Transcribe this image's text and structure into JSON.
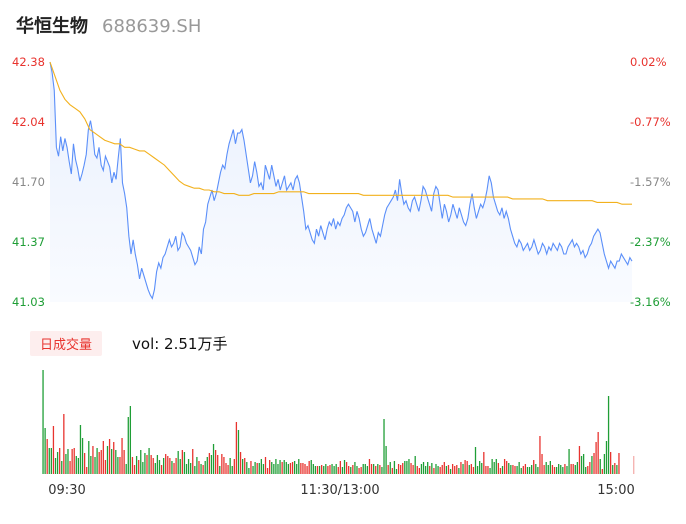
{
  "header": {
    "name": "华恒生物",
    "code": "688639.SH"
  },
  "volume_panel": {
    "tab_label": "日成交量",
    "vol_label": "vol: 2.51万手"
  },
  "colors": {
    "price": "#5b8ff9",
    "avg": "#f2b11d",
    "up": "#e8332e",
    "down": "#1f9e36",
    "area_top": "#e9f0fd",
    "area_bottom": "#f9fbff"
  },
  "chart_data": [
    {
      "type": "line",
      "title": "",
      "series": [
        {
          "name": "",
          "values": [
            42.38,
            42.32,
            42.22,
            41.9,
            41.85,
            41.96,
            41.88,
            41.95,
            41.9,
            41.82,
            41.75,
            41.92,
            41.83,
            41.78,
            41.71,
            41.75,
            41.8,
            41.86,
            42.0,
            42.05,
            41.98,
            41.86,
            41.84,
            41.9,
            41.8,
            41.77,
            41.85,
            41.82,
            41.79,
            41.7,
            41.76,
            41.72,
            41.84,
            41.95,
            41.7,
            41.64,
            41.56,
            41.4,
            41.3,
            41.38,
            41.3,
            41.24,
            41.16,
            41.22,
            41.18,
            41.14,
            41.1,
            41.07,
            41.05,
            41.1,
            41.2,
            41.25,
            41.22,
            41.28,
            41.3,
            41.34,
            41.38,
            41.34,
            41.36,
            41.4,
            41.32,
            41.34,
            41.42,
            41.4,
            41.36,
            41.34,
            41.32,
            41.28,
            41.24,
            41.26,
            41.34,
            41.3,
            41.44,
            41.48,
            41.58,
            41.62,
            41.66,
            41.6,
            41.64,
            41.7,
            41.76,
            41.8,
            41.78,
            41.86,
            41.92,
            41.96,
            42.0,
            41.92,
            41.98,
            41.98,
            42.0,
            41.94,
            41.86,
            41.78,
            41.7,
            41.74,
            41.82,
            41.76,
            41.68,
            41.7,
            41.66,
            41.8,
            41.76,
            41.72,
            41.8,
            41.74,
            41.68,
            41.72,
            41.66,
            41.7,
            41.74,
            41.66,
            41.68,
            41.7,
            41.66,
            41.72,
            41.74,
            41.7,
            41.62,
            41.54,
            41.44,
            41.46,
            41.42,
            41.38,
            41.36,
            41.44,
            41.4,
            41.46,
            41.42,
            41.38,
            41.44,
            41.48,
            41.46,
            41.5,
            41.44,
            41.48,
            41.46,
            41.5,
            41.52,
            41.56,
            41.58,
            41.56,
            41.54,
            41.48,
            41.54,
            41.5,
            41.44,
            41.4,
            41.42,
            41.46,
            41.5,
            41.44,
            41.4,
            41.36,
            41.42,
            41.4,
            41.46,
            41.52,
            41.56,
            41.58,
            41.6,
            41.62,
            41.66,
            41.6,
            41.72,
            41.64,
            41.58,
            41.6,
            41.56,
            41.54,
            41.6,
            41.62,
            41.58,
            41.54,
            41.6,
            41.68,
            41.66,
            41.62,
            41.58,
            41.54,
            41.64,
            41.68,
            41.66,
            41.58,
            41.5,
            41.58,
            41.54,
            41.48,
            41.52,
            41.58,
            41.54,
            41.5,
            41.56,
            41.52,
            41.48,
            41.46,
            41.5,
            41.58,
            41.64,
            41.56,
            41.5,
            41.54,
            41.58,
            41.56,
            41.6,
            41.66,
            41.74,
            41.7,
            41.62,
            41.58,
            41.54,
            41.52,
            41.56,
            41.5,
            41.54,
            41.5,
            41.44,
            41.4,
            41.36,
            41.34,
            41.38,
            41.36,
            41.32,
            41.34,
            41.36,
            41.32,
            41.34,
            41.38,
            41.34,
            41.3,
            41.32,
            41.36,
            41.34,
            41.3,
            41.34,
            41.32,
            41.36,
            41.34,
            41.32,
            41.36,
            41.34,
            41.3,
            41.3,
            41.34,
            41.36,
            41.38,
            41.34,
            41.36,
            41.34,
            41.3,
            41.32,
            41.28,
            41.3,
            41.34,
            41.36,
            41.4,
            41.42,
            41.44,
            41.42,
            41.36,
            41.3,
            41.26,
            41.22,
            41.26,
            41.24,
            41.22,
            41.26,
            41.26,
            41.3,
            41.28,
            41.26,
            41.24,
            41.28,
            41.26
          ]
        },
        {
          "name": "",
          "values": [
            42.38,
            42.3,
            42.22,
            42.17,
            42.14,
            42.12,
            42.1,
            42.06,
            42.0,
            41.98,
            41.96,
            41.94,
            41.93,
            41.92,
            41.92,
            41.9,
            41.9,
            41.89,
            41.88,
            41.88,
            41.86,
            41.84,
            41.82,
            41.8,
            41.77,
            41.74,
            41.71,
            41.69,
            41.68,
            41.67,
            41.67,
            41.66,
            41.66,
            41.65,
            41.65,
            41.64,
            41.64,
            41.64,
            41.63,
            41.63,
            41.63,
            41.64,
            41.64,
            41.64,
            41.64,
            41.64,
            41.65,
            41.65,
            41.65,
            41.65,
            41.65,
            41.65,
            41.64,
            41.64,
            41.64,
            41.64,
            41.64,
            41.64,
            41.64,
            41.64,
            41.64,
            41.64,
            41.64,
            41.63,
            41.63,
            41.63,
            41.63,
            41.63,
            41.63,
            41.63,
            41.63,
            41.63,
            41.63,
            41.63,
            41.63,
            41.63,
            41.63,
            41.63,
            41.63,
            41.63,
            41.63,
            41.62,
            41.62,
            41.62,
            41.62,
            41.62,
            41.62,
            41.62,
            41.62,
            41.62,
            41.62,
            41.62,
            41.62,
            41.61,
            41.61,
            41.61,
            41.61,
            41.61,
            41.61,
            41.61,
            41.6,
            41.6,
            41.6,
            41.6,
            41.6,
            41.6,
            41.6,
            41.6,
            41.6,
            41.6,
            41.59,
            41.59,
            41.59,
            41.59,
            41.59,
            41.58,
            41.58,
            41.58
          ]
        }
      ],
      "y_ticks_left": [
        "42.38",
        "42.04",
        "41.70",
        "41.37",
        "41.03"
      ],
      "y_ticks_right": [
        "0.02%",
        "-0.77%",
        "-1.57%",
        "-2.37%",
        "-3.16%"
      ],
      "ylim": [
        41.03,
        42.38
      ],
      "area_fill": true,
      "grid": false
    },
    {
      "type": "bar",
      "title": "",
      "x_ticks": [
        "09:30",
        "11:30/13:00",
        "15:00"
      ],
      "values": [
        104,
        46,
        35,
        26,
        26,
        48,
        16,
        22,
        26,
        13,
        60,
        20,
        25,
        13,
        25,
        26,
        18,
        16,
        49,
        36,
        21,
        7,
        33,
        18,
        28,
        17,
        26,
        22,
        24,
        33,
        14,
        28,
        35,
        25,
        32,
        24,
        17,
        17,
        36,
        24,
        10,
        57,
        68,
        17,
        9,
        18,
        14,
        24,
        12,
        21,
        19,
        26,
        19,
        16,
        11,
        19,
        14,
        9,
        16,
        20,
        18,
        16,
        13,
        11,
        16,
        23,
        15,
        24,
        22,
        10,
        15,
        11,
        25,
        8,
        17,
        13,
        10,
        9,
        13,
        17,
        21,
        19,
        30,
        24,
        19,
        8,
        20,
        17,
        11,
        9,
        16,
        8,
        15,
        52,
        44,
        22,
        15,
        16,
        12,
        6,
        13,
        8,
        12,
        11,
        11,
        15,
        10,
        17,
        6,
        14,
        12,
        10,
        15,
        10,
        14,
        12,
        14,
        12,
        10,
        11,
        12,
        13,
        10,
        15,
        11,
        11,
        10,
        8,
        13,
        14,
        10,
        8,
        8,
        8,
        9,
        8,
        10,
        8,
        9,
        10,
        8,
        10,
        7,
        13,
        7,
        14,
        12,
        8,
        7,
        9,
        12,
        8,
        6,
        7,
        10,
        10,
        8,
        15,
        10,
        10,
        8,
        10,
        9,
        7,
        55,
        28,
        9,
        12,
        6,
        13,
        5,
        10,
        9,
        11,
        13,
        13,
        15,
        11,
        9,
        18,
        8,
        6,
        10,
        12,
        8,
        12,
        8,
        11,
        6,
        10,
        8,
        7,
        9,
        12,
        8,
        9,
        5,
        10,
        8,
        9,
        6,
        12,
        10,
        14,
        13,
        9,
        10,
        7,
        27,
        8,
        13,
        11,
        22,
        8,
        8,
        6,
        15,
        12,
        15,
        11,
        6,
        8,
        15,
        13,
        11,
        9,
        9,
        8,
        8,
        12,
        6,
        8,
        10,
        7,
        7,
        9,
        14,
        10,
        7,
        38,
        20,
        9,
        12,
        9,
        13,
        9,
        7,
        7,
        10,
        9,
        7,
        10,
        8,
        25,
        10,
        10,
        9,
        12,
        28,
        18,
        20,
        7,
        8,
        12,
        18,
        21,
        32,
        42,
        15,
        5,
        20,
        33,
        78,
        22,
        9,
        11,
        9,
        21
      ],
      "colors": [
        "g",
        "g",
        "r",
        "g",
        "g",
        "r",
        "g",
        "g",
        "r",
        "g",
        "r",
        "g",
        "g",
        "r",
        "r",
        "r",
        "g",
        "g",
        "g",
        "g",
        "r",
        "r",
        "g",
        "g",
        "r",
        "g",
        "g",
        "r",
        "r",
        "r",
        "r",
        "g",
        "r",
        "g",
        "r",
        "g",
        "g",
        "r",
        "r",
        "r",
        "g",
        "g",
        "g",
        "r",
        "r",
        "g",
        "r",
        "g",
        "g",
        "g",
        "r",
        "g",
        "r",
        "r",
        "g",
        "g",
        "g",
        "r",
        "g",
        "r",
        "r",
        "r",
        "g",
        "r",
        "r",
        "g",
        "g",
        "r",
        "g",
        "g",
        "g",
        "g",
        "r",
        "g",
        "g",
        "r",
        "g",
        "r",
        "g",
        "g",
        "r",
        "g",
        "g",
        "r",
        "r",
        "g",
        "r",
        "r",
        "r",
        "r",
        "g",
        "g",
        "r",
        "r",
        "g",
        "r",
        "g",
        "r",
        "g",
        "g",
        "r",
        "g",
        "g",
        "r",
        "g",
        "g",
        "g",
        "r",
        "r",
        "r",
        "g",
        "g",
        "g",
        "g",
        "g",
        "r",
        "g",
        "g",
        "g",
        "r",
        "r",
        "g",
        "g",
        "g",
        "r",
        "r",
        "r",
        "r",
        "r",
        "g",
        "g",
        "g",
        "r",
        "g",
        "r",
        "g",
        "g",
        "r",
        "r",
        "g",
        "g",
        "g",
        "r",
        "r",
        "g",
        "g",
        "r",
        "r",
        "g",
        "r",
        "g",
        "g",
        "r",
        "r",
        "g",
        "g",
        "g",
        "r",
        "r",
        "g",
        "r",
        "g",
        "r",
        "g",
        "g",
        "g",
        "r",
        "g",
        "r",
        "g",
        "g",
        "r",
        "r",
        "r",
        "g",
        "g",
        "g",
        "r",
        "r",
        "g",
        "r",
        "r",
        "g",
        "g",
        "g",
        "g",
        "r",
        "g",
        "r",
        "g",
        "g",
        "r",
        "r",
        "r",
        "g",
        "r",
        "g",
        "r",
        "r",
        "r",
        "g",
        "r",
        "g",
        "r",
        "r",
        "g",
        "r",
        "r",
        "g",
        "g",
        "g",
        "g",
        "r",
        "r",
        "r",
        "g",
        "g",
        "g",
        "g",
        "r",
        "r",
        "g",
        "r",
        "r",
        "g",
        "g",
        "r",
        "r",
        "g",
        "g",
        "g",
        "r",
        "r",
        "g",
        "g",
        "g",
        "r",
        "g",
        "g",
        "r",
        "r",
        "r",
        "g",
        "g",
        "g",
        "r",
        "r",
        "g",
        "g",
        "g",
        "g",
        "r",
        "g",
        "g",
        "r",
        "r",
        "g",
        "g",
        "r",
        "g",
        "g",
        "g",
        "r",
        "r",
        "g",
        "r",
        "r",
        "r",
        "g",
        "r",
        "g",
        "g",
        "g",
        "r",
        "g",
        "r",
        "g",
        "r",
        "g",
        "r"
      ]
    }
  ]
}
